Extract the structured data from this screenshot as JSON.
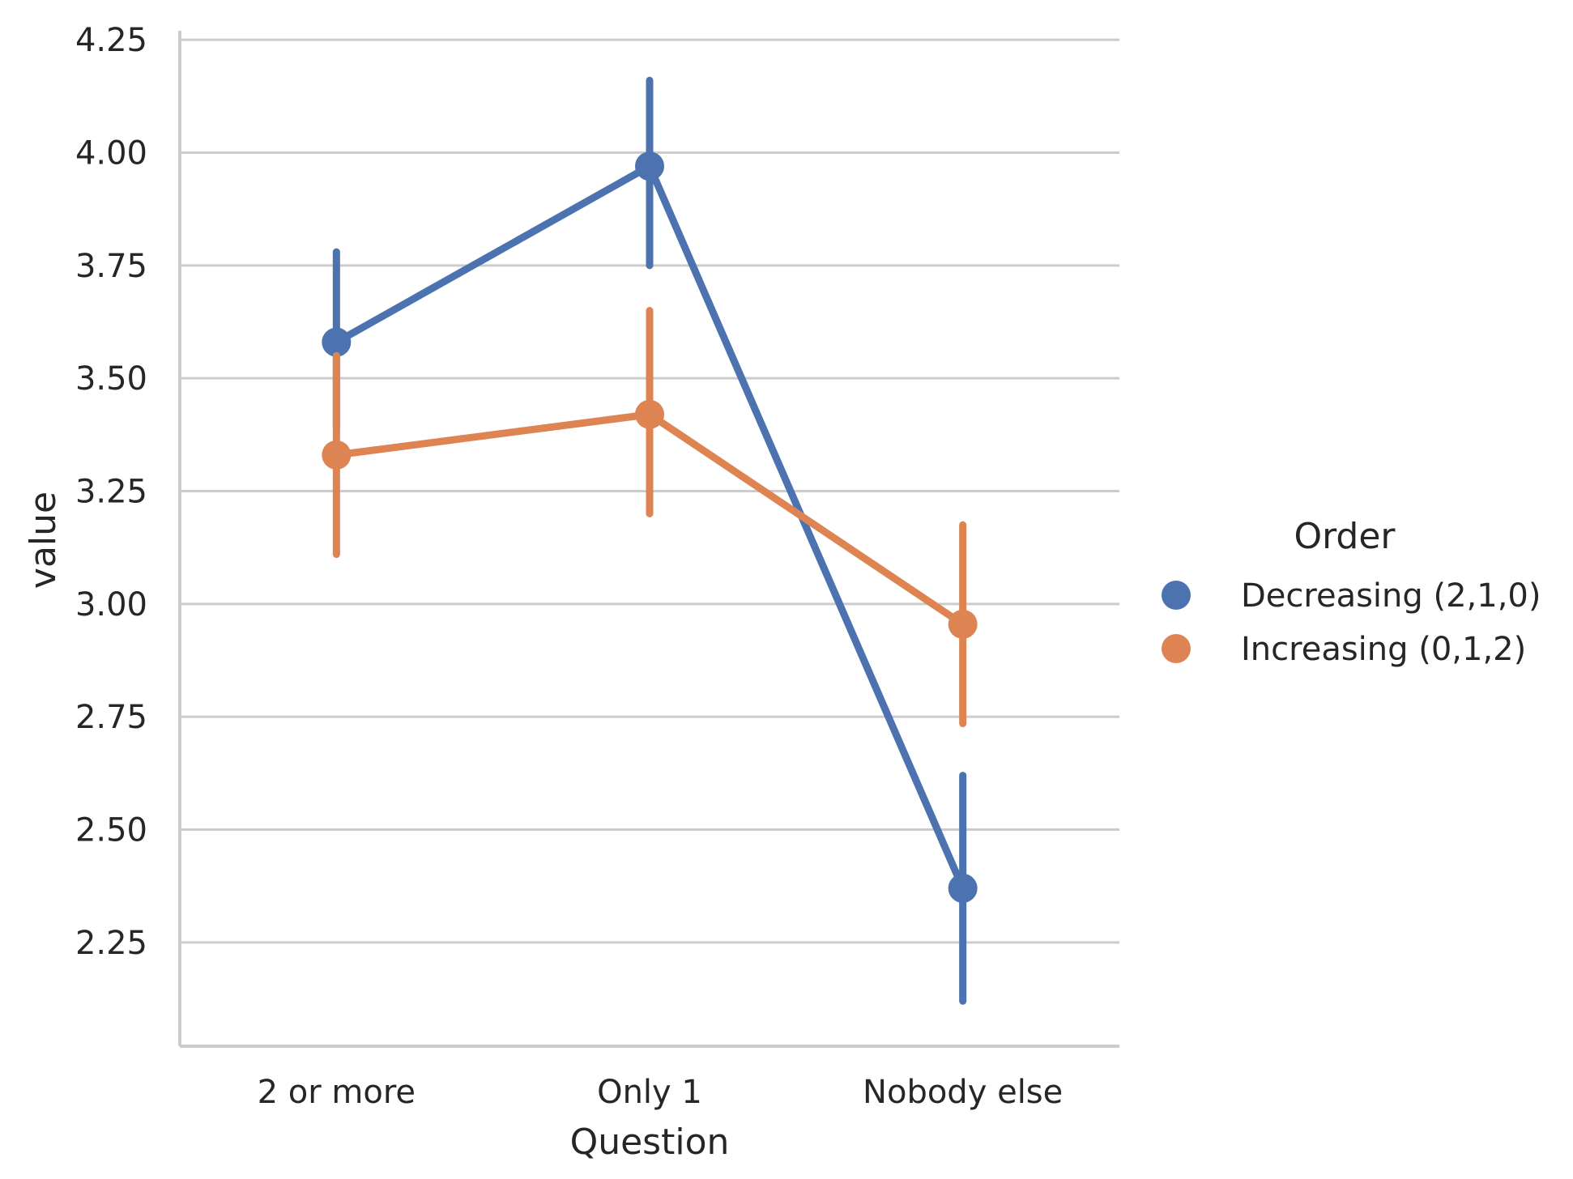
{
  "chart_data": {
    "type": "line",
    "categories": [
      "2 or more",
      "Only 1",
      "Nobody else"
    ],
    "xlabel": "Question",
    "ylabel": "value",
    "ylim": [
      2.02,
      4.27
    ],
    "yticks": [
      2.25,
      2.5,
      2.75,
      3.0,
      3.25,
      3.5,
      3.75,
      4.0,
      4.25
    ],
    "ytick_labels": [
      "2.25",
      "2.50",
      "2.75",
      "3.00",
      "3.25",
      "3.50",
      "3.75",
      "4.00",
      "4.25"
    ],
    "grid": true,
    "legend": {
      "title": "Order",
      "placement": "right"
    },
    "series": [
      {
        "name": "Decreasing (2,1,0)",
        "color": "#4c72b0",
        "values": [
          3.58,
          3.97,
          2.37
        ],
        "ci_low": [
          3.39,
          3.75,
          2.12
        ],
        "ci_high": [
          3.78,
          4.16,
          2.62
        ]
      },
      {
        "name": "Increasing (0,1,2)",
        "color": "#dd8452",
        "values": [
          3.33,
          3.42,
          2.955
        ],
        "ci_low": [
          3.11,
          3.2,
          2.735
        ],
        "ci_high": [
          3.55,
          3.65,
          3.175
        ]
      }
    ]
  }
}
